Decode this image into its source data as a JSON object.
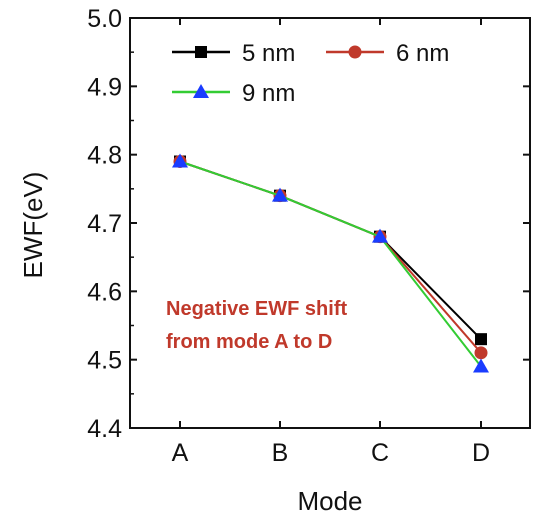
{
  "chart_data": {
    "type": "line",
    "title": "",
    "xlabel": "Mode",
    "ylabel": "EWF(eV)",
    "categories": [
      "A",
      "B",
      "C",
      "D"
    ],
    "ylim": [
      4.4,
      5.0
    ],
    "yticks": [
      "4.4",
      "4.5",
      "4.6",
      "4.7",
      "4.8",
      "4.9",
      "5.0"
    ],
    "grid": false,
    "legend_position": "top",
    "series": [
      {
        "name": "5 nm",
        "values": [
          4.79,
          4.74,
          4.68,
          4.53
        ],
        "color": "#000000",
        "marker": "square"
      },
      {
        "name": "6 nm",
        "values": [
          4.79,
          4.74,
          4.68,
          4.51
        ],
        "color": "#c0392b",
        "marker": "circle"
      },
      {
        "name": "9 nm",
        "values": [
          4.79,
          4.74,
          4.68,
          4.49
        ],
        "color": "#33cc33",
        "marker": "triangle",
        "marker_color": "#1a3cff"
      }
    ],
    "annotation": {
      "lines": [
        "Negative EWF shift",
        "from mode A to D"
      ],
      "color": "#c0392b"
    }
  }
}
